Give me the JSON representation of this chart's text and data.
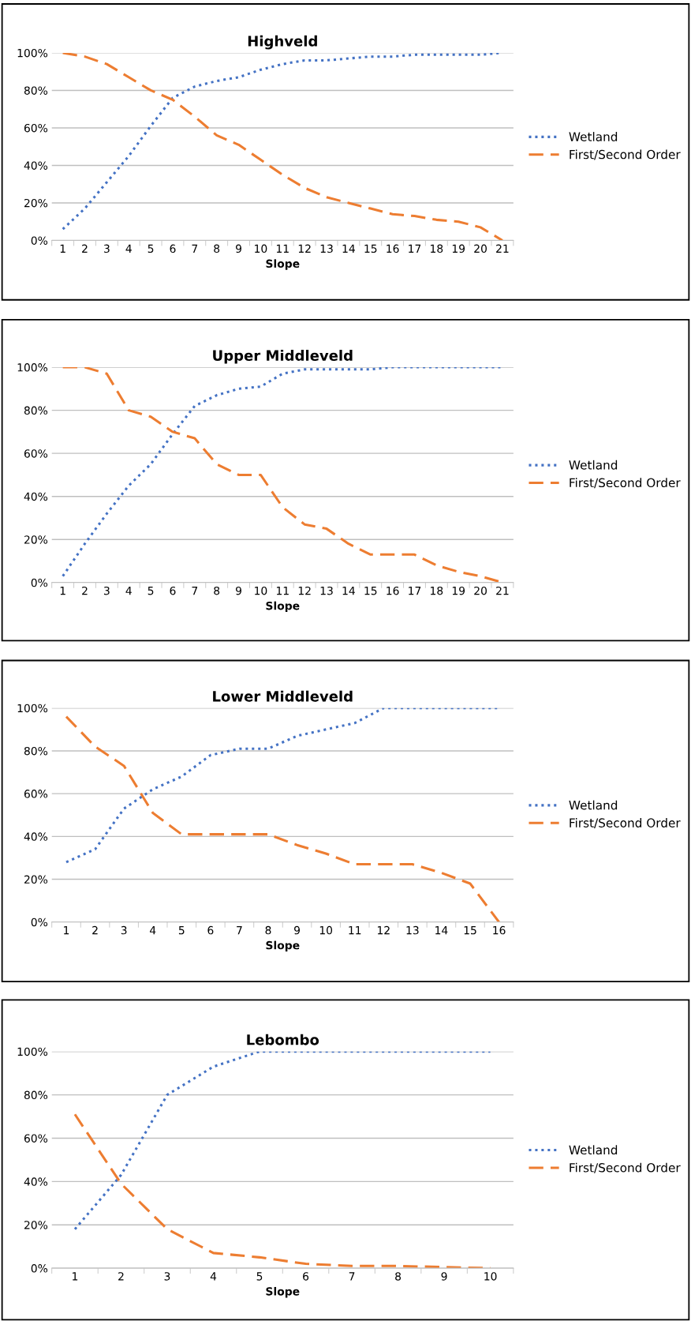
{
  "chart_data": [
    {
      "type": "line",
      "title": "Highveld",
      "xlabel": "Slope",
      "categories": [
        "1",
        "2",
        "3",
        "4",
        "5",
        "6",
        "7",
        "8",
        "9",
        "10",
        "11",
        "12",
        "13",
        "14",
        "15",
        "16",
        "17",
        "18",
        "19",
        "20",
        "21"
      ],
      "ylim": [
        0,
        100
      ],
      "yticks": [
        {
          "value": 0,
          "label": "0%"
        },
        {
          "value": 20,
          "label": "20%"
        },
        {
          "value": 40,
          "label": "40%"
        },
        {
          "value": 60,
          "label": "60%"
        },
        {
          "value": 80,
          "label": "80%"
        },
        {
          "value": 100,
          "label": "100%"
        }
      ],
      "grid": "y",
      "legend": "right",
      "marker": "none",
      "series": [
        {
          "name": "Wetland",
          "color": "#4472c4",
          "line_style": "dotted",
          "values": [
            6,
            17,
            31,
            45,
            61,
            76,
            82,
            85,
            87,
            91,
            94,
            96,
            96,
            97,
            98,
            98,
            99,
            99,
            99,
            99,
            100
          ]
        },
        {
          "name": "First/Second Order",
          "color": "#ed7d31",
          "line_style": "dashed",
          "values": [
            100,
            98,
            94,
            87,
            80,
            75,
            66,
            56,
            51,
            43,
            35,
            28,
            23,
            20,
            17,
            14,
            13,
            11,
            10,
            7,
            0
          ]
        }
      ]
    },
    {
      "type": "line",
      "title": "Upper Middleveld",
      "xlabel": "Slope",
      "categories": [
        "1",
        "2",
        "3",
        "4",
        "5",
        "6",
        "7",
        "8",
        "9",
        "10",
        "11",
        "12",
        "13",
        "14",
        "15",
        "16",
        "17",
        "18",
        "19",
        "20",
        "21"
      ],
      "ylim": [
        0,
        100
      ],
      "yticks": [
        {
          "value": 0,
          "label": "0%"
        },
        {
          "value": 20,
          "label": "20%"
        },
        {
          "value": 40,
          "label": "40%"
        },
        {
          "value": 60,
          "label": "60%"
        },
        {
          "value": 80,
          "label": "80%"
        },
        {
          "value": 100,
          "label": "100%"
        }
      ],
      "grid": "y",
      "legend": "right",
      "marker": "none",
      "series": [
        {
          "name": "Wetland",
          "color": "#4472c4",
          "line_style": "dotted",
          "values": [
            3,
            18,
            32,
            45,
            55,
            69,
            82,
            87,
            90,
            91,
            97,
            99,
            99,
            99,
            99,
            100,
            100,
            100,
            100,
            100,
            100
          ]
        },
        {
          "name": "First/Second Order",
          "color": "#ed7d31",
          "line_style": "dashed",
          "values": [
            100,
            100,
            97,
            80,
            77,
            70,
            67,
            55,
            50,
            50,
            35,
            27,
            25,
            18,
            13,
            13,
            13,
            8,
            5,
            3,
            0
          ]
        }
      ]
    },
    {
      "type": "line",
      "title": "Lower Middleveld",
      "xlabel": "Slope",
      "categories": [
        "1",
        "2",
        "3",
        "4",
        "5",
        "6",
        "7",
        "8",
        "9",
        "10",
        "11",
        "12",
        "13",
        "14",
        "15",
        "16"
      ],
      "ylim": [
        0,
        100
      ],
      "yticks": [
        {
          "value": 0,
          "label": "0%"
        },
        {
          "value": 20,
          "label": "20%"
        },
        {
          "value": 40,
          "label": "40%"
        },
        {
          "value": 60,
          "label": "60%"
        },
        {
          "value": 80,
          "label": "80%"
        },
        {
          "value": 100,
          "label": "100%"
        }
      ],
      "grid": "y",
      "legend": "right",
      "marker": "none",
      "series": [
        {
          "name": "Wetland",
          "color": "#4472c4",
          "line_style": "dotted",
          "values": [
            28,
            34,
            53,
            62,
            68,
            78,
            81,
            81,
            87,
            90,
            93,
            100,
            100,
            100,
            100,
            100
          ]
        },
        {
          "name": "First/Second Order",
          "color": "#ed7d31",
          "line_style": "dashed",
          "values": [
            96,
            82,
            73,
            51,
            41,
            41,
            41,
            41,
            36,
            32,
            27,
            27,
            27,
            23,
            18,
            0
          ]
        }
      ]
    },
    {
      "type": "line",
      "title": "Lebombo",
      "xlabel": "Slope",
      "categories": [
        "1",
        "2",
        "3",
        "4",
        "5",
        "6",
        "7",
        "8",
        "9",
        "10"
      ],
      "ylim": [
        0,
        100
      ],
      "yticks": [
        {
          "value": 0,
          "label": "0%"
        },
        {
          "value": 20,
          "label": "20%"
        },
        {
          "value": 40,
          "label": "40%"
        },
        {
          "value": 60,
          "label": "60%"
        },
        {
          "value": 80,
          "label": "80%"
        },
        {
          "value": 100,
          "label": "100%"
        }
      ],
      "grid": "y",
      "legend": "right",
      "marker": "none",
      "series": [
        {
          "name": "Wetland",
          "color": "#4472c4",
          "line_style": "dotted",
          "values": [
            18,
            43,
            80,
            93,
            100,
            100,
            100,
            100,
            100,
            100
          ]
        },
        {
          "name": "First/Second Order",
          "color": "#ed7d31",
          "line_style": "dashed",
          "values": [
            71,
            39,
            18,
            7,
            5,
            2,
            1,
            1,
            0.5,
            0
          ]
        }
      ]
    }
  ]
}
